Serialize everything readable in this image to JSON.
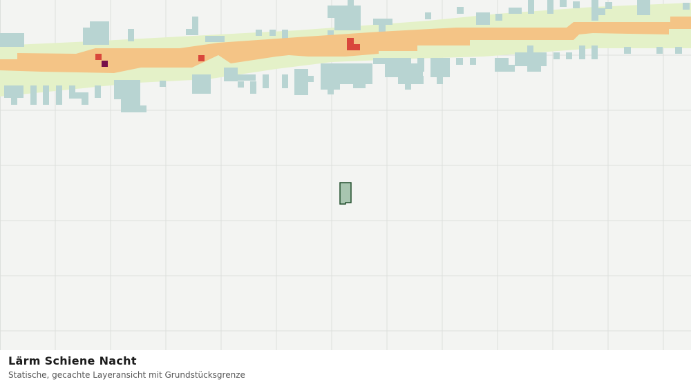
{
  "title": "Lärm Schiene Nacht",
  "subtitle": "Statische, gecachte Layeransicht mit Grundstücksgrenze"
}
